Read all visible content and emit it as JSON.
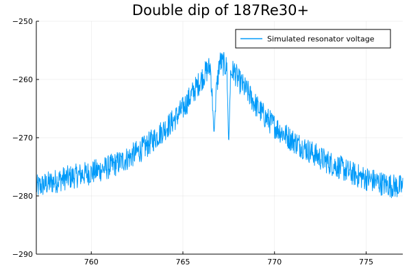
{
  "chart_data": {
    "type": "line",
    "title": "Double dip of 187Re30+",
    "xlabel": "",
    "ylabel": "",
    "xlim": [
      757,
      777
    ],
    "ylim": [
      -290,
      -250
    ],
    "xticks": [
      760,
      765,
      770,
      775
    ],
    "yticks": [
      -290,
      -280,
      -270,
      -260,
      -250
    ],
    "xtick_labels": [
      "760",
      "765",
      "770",
      "775"
    ],
    "ytick_labels": [
      "−290",
      "−280",
      "−270",
      "−260",
      "−250"
    ],
    "grid": true,
    "legend_position": "top-right",
    "series": [
      {
        "name": "Simulated resonator voltage",
        "color": "#009af9",
        "x": [
          757.0,
          757.5,
          758.0,
          758.5,
          759.0,
          759.5,
          760.0,
          760.5,
          761.0,
          761.5,
          762.0,
          762.5,
          763.0,
          763.5,
          764.0,
          764.5,
          765.0,
          765.5,
          766.0,
          766.3,
          766.5,
          766.6,
          766.7,
          766.8,
          767.0,
          767.2,
          767.4,
          767.5,
          767.6,
          767.8,
          768.0,
          768.5,
          769.0,
          769.5,
          770.0,
          770.5,
          771.0,
          771.5,
          772.0,
          772.5,
          773.0,
          773.5,
          774.0,
          774.5,
          775.0,
          775.5,
          776.0,
          776.5,
          777.0
        ],
        "y": [
          -278.5,
          -278.0,
          -277.5,
          -277.0,
          -276.7,
          -276.3,
          -276.0,
          -275.5,
          -275.0,
          -274.3,
          -273.5,
          -272.5,
          -271.5,
          -270.0,
          -268.5,
          -267.0,
          -265.0,
          -262.5,
          -260.0,
          -258.5,
          -257.8,
          -263.0,
          -269.5,
          -263.0,
          -257.0,
          -257.3,
          -258.0,
          -271.5,
          -259.0,
          -258.5,
          -260.0,
          -262.0,
          -264.5,
          -266.5,
          -268.0,
          -269.3,
          -270.5,
          -271.5,
          -272.5,
          -273.5,
          -274.3,
          -275.0,
          -275.8,
          -276.5,
          -277.0,
          -277.5,
          -278.0,
          -278.3,
          -278.5
        ]
      }
    ]
  }
}
